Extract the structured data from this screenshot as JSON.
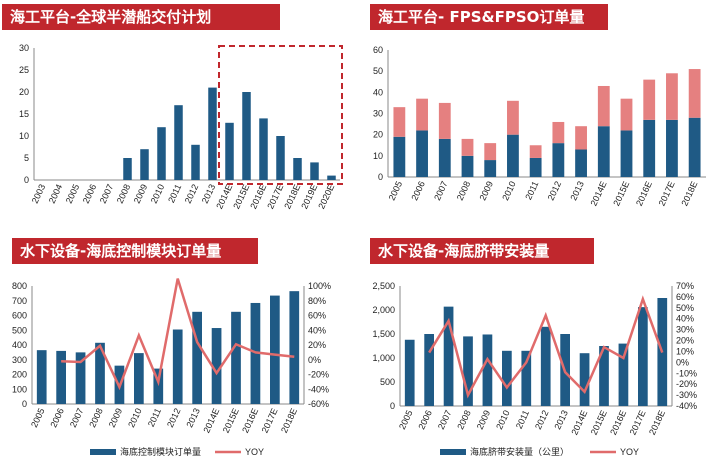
{
  "colors": {
    "title_bg": "#c0272d",
    "bar": "#1f5a85",
    "line": "#e06b6b",
    "bar_top": "#e58080",
    "highlight_box": "#c0272d"
  },
  "panels": [
    {
      "title": "海工平台-全球半潜船交付计划",
      "chart_data": {
        "type": "bar",
        "categories": [
          "2003",
          "2004",
          "2005",
          "2006",
          "2007",
          "2008",
          "2009",
          "2010",
          "2011",
          "2012",
          "2013",
          "2014E",
          "2015E",
          "2016E",
          "2017E",
          "2018E",
          "2019E",
          "2020E"
        ],
        "values": [
          0,
          0,
          0,
          0,
          0,
          5,
          7,
          12,
          17,
          8,
          21,
          13,
          20,
          14,
          10,
          5,
          4,
          1
        ],
        "ylim": [
          0,
          30
        ],
        "yticks": [
          0,
          5,
          10,
          15,
          20,
          25,
          30
        ],
        "highlight_from_category": "2014E",
        "grid": false
      }
    },
    {
      "title": "海工平台- FPS&FPSO订单量",
      "chart_data": {
        "type": "bar",
        "stacked": true,
        "categories": [
          "2005",
          "2006",
          "2007",
          "2008",
          "2009",
          "2010",
          "2011",
          "2012",
          "2013",
          "2014E",
          "2015E",
          "2016E",
          "2017E",
          "2018E"
        ],
        "series": [
          {
            "values": [
              19,
              22,
              18,
              10,
              8,
              20,
              9,
              16,
              13,
              24,
              22,
              27,
              27,
              28
            ]
          },
          {
            "values": [
              14,
              15,
              17,
              8,
              8,
              16,
              6,
              10,
              11,
              19,
              15,
              19,
              22,
              23
            ]
          }
        ],
        "ylim": [
          0,
          60
        ],
        "yticks": [
          0,
          10,
          20,
          30,
          40,
          50,
          60
        ],
        "grid": false
      }
    },
    {
      "title": "水下设备-海底控制模块订单量",
      "chart_data": {
        "type": "bar+line",
        "categories": [
          "2005",
          "2006",
          "2007",
          "2008",
          "2009",
          "2010",
          "2011",
          "2012",
          "2013",
          "2014E",
          "2015E",
          "2016E",
          "2017E",
          "2018E"
        ],
        "series": [
          {
            "name": "海底控制模块订单量",
            "type": "bar",
            "axis": "left",
            "values": [
              365,
              360,
              350,
              415,
              260,
              345,
              240,
              505,
              625,
              515,
              625,
              685,
              735,
              765
            ]
          },
          {
            "name": "YOY",
            "type": "line",
            "axis": "right",
            "values": [
              null,
              -2,
              -3,
              19,
              -37,
              33,
              -30,
              110,
              24,
              -18,
              21,
              10,
              7,
              4
            ]
          }
        ],
        "ylim": [
          0,
          800
        ],
        "yticks": [
          0,
          100,
          200,
          300,
          400,
          500,
          600,
          700,
          800
        ],
        "y2lim": [
          -60,
          100
        ],
        "y2ticks": [
          "-60%",
          "-40%",
          "-20%",
          "0%",
          "20%",
          "40%",
          "60%",
          "80%",
          "100%"
        ],
        "grid": false,
        "legend": "bottom"
      }
    },
    {
      "title": "水下设备-海底脐带安装量",
      "chart_data": {
        "type": "bar+line",
        "categories": [
          "2005",
          "2006",
          "2007",
          "2008",
          "2009",
          "2010",
          "2011",
          "2012",
          "2013",
          "2014E",
          "2015E",
          "2016E",
          "2017E",
          "2018E"
        ],
        "series": [
          {
            "name": "海底脐带安装量（公里）",
            "type": "bar",
            "axis": "left",
            "values": [
              1380,
              1500,
              2070,
              1450,
              1490,
              1150,
              1150,
              1650,
              1500,
              1100,
              1250,
              1300,
              2060,
              2250
            ]
          },
          {
            "name": "YOY",
            "type": "line",
            "axis": "right",
            "values": [
              null,
              9,
              38,
              -30,
              3,
              -23,
              0,
              43,
              -9,
              -27,
              14,
              4,
              58,
              9
            ]
          }
        ],
        "ylim": [
          0,
          2500
        ],
        "yticks": [
          "0",
          "500",
          "1,000",
          "1,500",
          "2,000",
          "2,500"
        ],
        "y2lim": [
          -40,
          70
        ],
        "y2ticks": [
          "-40%",
          "-30%",
          "-20%",
          "-10%",
          "0%",
          "10%",
          "20%",
          "30%",
          "40%",
          "50%",
          "60%",
          "70%"
        ],
        "grid": false,
        "legend": "bottom"
      }
    }
  ]
}
